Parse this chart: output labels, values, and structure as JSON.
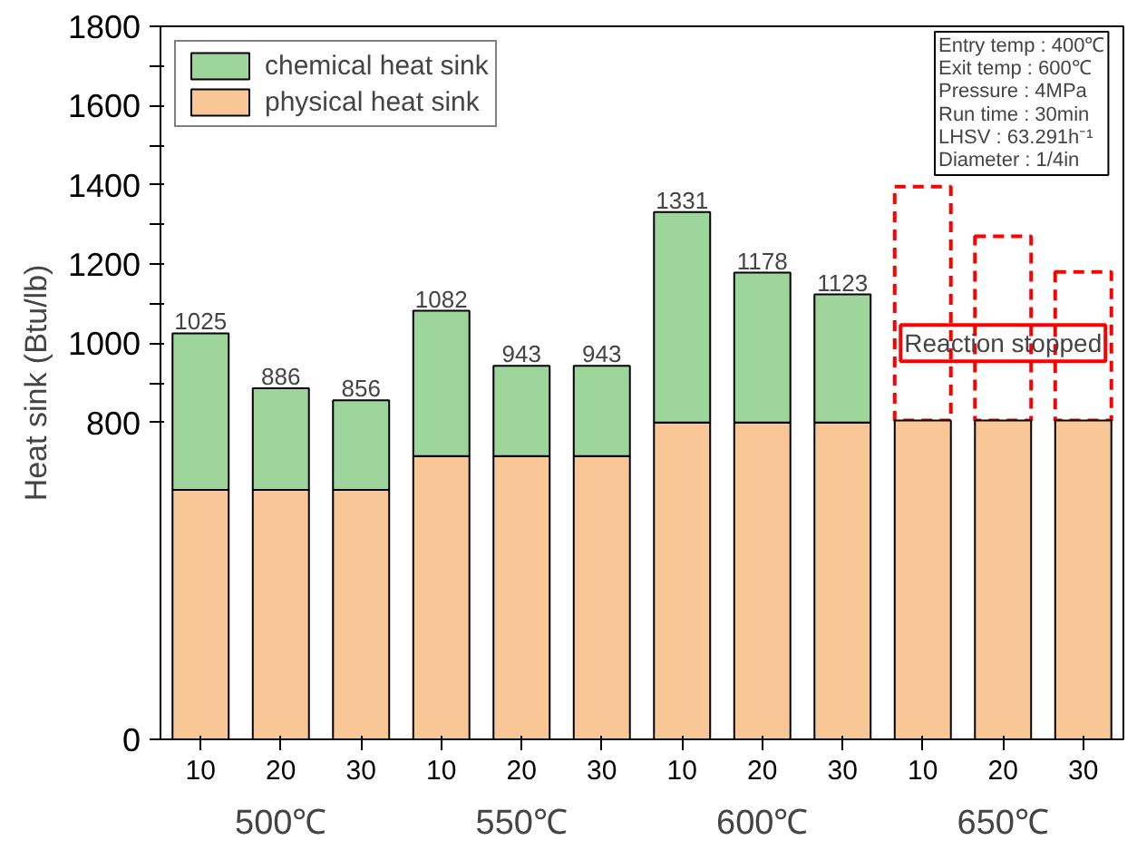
{
  "chart_data": {
    "type": "bar",
    "stacked": true,
    "ylabel": "Heat sink (Btu/lb)",
    "categories": [
      "10",
      "20",
      "30",
      "10",
      "20",
      "30",
      "10",
      "20",
      "30",
      "10",
      "20",
      "30"
    ],
    "series": [
      {
        "name": "physical heat sink",
        "color": "#f9c795",
        "values": [
          630,
          630,
          630,
          715,
          715,
          715,
          800,
          800,
          800,
          805,
          805,
          805
        ]
      },
      {
        "name": "chemical heat sink",
        "color": "#9dd59b",
        "values": [
          395,
          256,
          226,
          367,
          228,
          228,
          531,
          378,
          323,
          null,
          null,
          null
        ]
      },
      {
        "color": "#ff0000",
        "line_style": "dashed",
        "values": [
          null,
          null,
          null,
          null,
          null,
          null,
          null,
          null,
          null,
          590,
          465,
          375
        ]
      }
    ],
    "totals": [
      "1025",
      "886",
      "856",
      "1082",
      "943",
      "943",
      "1331",
      "1178",
      "1123",
      null,
      null,
      null
    ],
    "ylim": [
      0,
      1800
    ],
    "yticks": [
      0,
      800,
      {
        "value": 900,
        "label": null
      },
      1000,
      {
        "value": 1100,
        "label": null
      },
      1200,
      {
        "value": 1300,
        "label": null
      },
      1400,
      {
        "value": 1500,
        "label": null
      },
      1600,
      {
        "value": 1700,
        "label": null
      },
      1800
    ],
    "legend": "top left",
    "grid": false,
    "annotations": [
      "Entry temp : 400℃",
      "Exit temp : 600℃",
      "Pressure : 4MPa",
      "Run time : 30min",
      "LHSV : 63.291h⁻¹",
      "Diameter : 1/4in",
      "Reaction stopped",
      "500℃",
      "550℃",
      "600℃",
      "650℃"
    ]
  }
}
